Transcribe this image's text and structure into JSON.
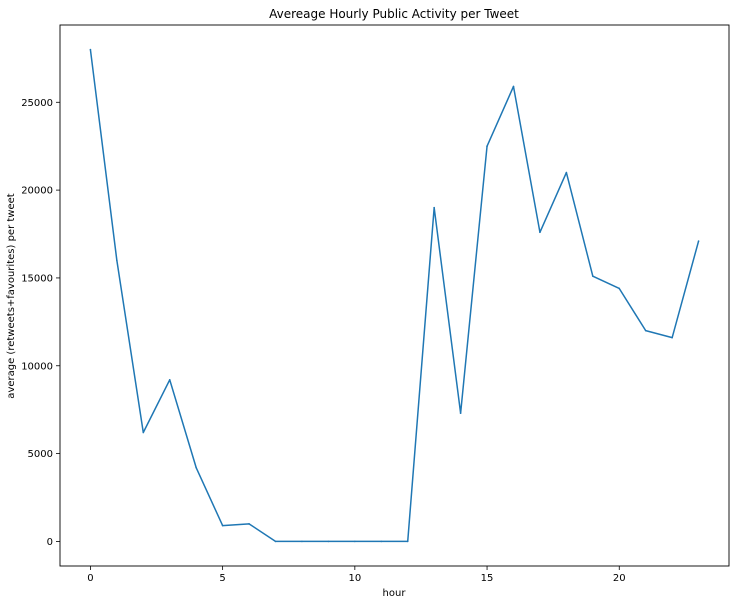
{
  "chart_data": {
    "type": "line",
    "title": "Avereage Hourly Public Activity per Tweet",
    "xlabel": "hour",
    "ylabel": "average (retweets+favourites) per tweet",
    "xlim": [
      -1.15,
      24.15
    ],
    "ylim": [
      -1400,
      29400
    ],
    "x_ticks": [
      0,
      5,
      10,
      15,
      20
    ],
    "y_ticks": [
      0,
      5000,
      10000,
      15000,
      20000,
      25000
    ],
    "grid": false,
    "legend": "none",
    "series": [
      {
        "color": "#1f77b4",
        "x": [
          0,
          1,
          2,
          3,
          4,
          5,
          6,
          7,
          8,
          9,
          10,
          11,
          12,
          13,
          14,
          15,
          16,
          17,
          18,
          19,
          20,
          21,
          22,
          23
        ],
        "y": [
          28000,
          16000,
          6200,
          9200,
          4200,
          900,
          1000,
          0,
          0,
          0,
          0,
          0,
          0,
          19000,
          7300,
          22500,
          25900,
          17600,
          21000,
          15100,
          14400,
          12000,
          11600,
          17100
        ]
      }
    ]
  }
}
